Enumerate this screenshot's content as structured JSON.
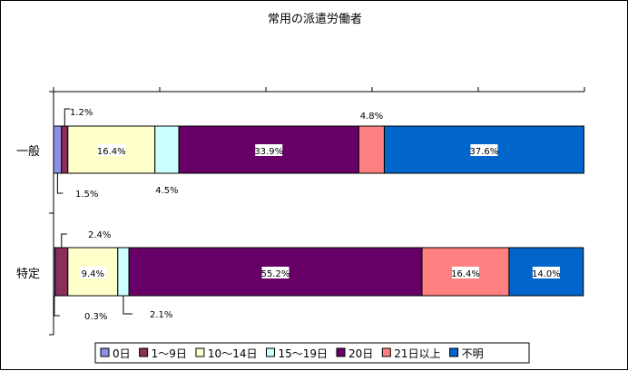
{
  "chart_data": {
    "type": "bar",
    "orientation": "horizontal",
    "stacked": "percent",
    "title": "常用の派遣労働者",
    "categories": [
      "一般",
      "特定"
    ],
    "series": [
      {
        "name": "0日",
        "color": "#8E8EE6",
        "values": [
          1.5,
          0.3
        ]
      },
      {
        "name": "1～9日",
        "color": "#8A2E5A",
        "values": [
          1.2,
          2.4
        ]
      },
      {
        "name": "10～14日",
        "color": "#FFFFCC",
        "values": [
          16.4,
          9.4
        ]
      },
      {
        "name": "15～19日",
        "color": "#CCFFFF",
        "values": [
          4.5,
          2.1
        ]
      },
      {
        "name": "20日",
        "color": "#660066",
        "values": [
          33.9,
          55.2
        ]
      },
      {
        "name": "21日以上",
        "color": "#FF8080",
        "values": [
          4.8,
          16.4
        ]
      },
      {
        "name": "不明",
        "color": "#0066CC",
        "values": [
          37.6,
          14.0
        ]
      }
    ],
    "data_labels": [
      [
        "1.5%",
        "1.2%",
        "16.4%",
        "4.5%",
        "33.9%",
        "4.8%",
        "37.6%"
      ],
      [
        "0.3%",
        "2.4%",
        "9.4%",
        "2.1%",
        "55.2%",
        "16.4%",
        "14.0%"
      ]
    ],
    "xlim": [
      0,
      100
    ],
    "grid": false,
    "legend": "bottom"
  }
}
